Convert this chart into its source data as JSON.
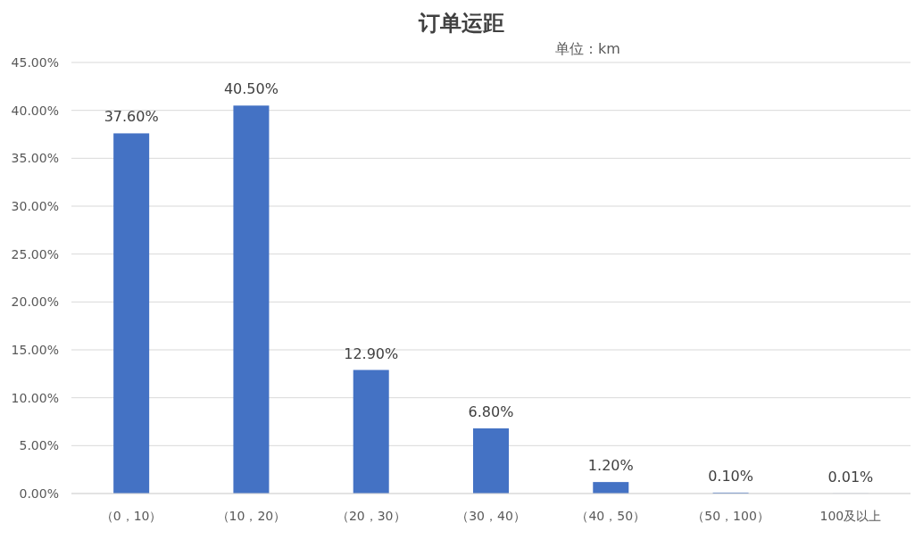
{
  "chart_data": {
    "type": "bar",
    "title": "订单运距",
    "subtitle": "单位：km",
    "categories": [
      "（0，10）",
      "（10，20）",
      "（20，30）",
      "（30，40）",
      "（40，50）",
      "（50，100）",
      "100及以上"
    ],
    "values": [
      37.6,
      40.5,
      12.9,
      6.8,
      1.2,
      0.1,
      0.01
    ],
    "value_labels": [
      "37.60%",
      "40.50%",
      "12.90%",
      "6.80%",
      "1.20%",
      "0.10%",
      "0.01%"
    ],
    "color": "#4472c4",
    "ylim": [
      0,
      45
    ],
    "yticks": [
      {
        "value": 0,
        "label": "0.00%"
      },
      {
        "value": 5,
        "label": "5.00%"
      },
      {
        "value": 10,
        "label": "10.00%"
      },
      {
        "value": 15,
        "label": "15.00%"
      },
      {
        "value": 20,
        "label": "20.00%"
      },
      {
        "value": 25,
        "label": "25.00%"
      },
      {
        "value": 30,
        "label": "30.00%"
      },
      {
        "value": 35,
        "label": "35.00%"
      },
      {
        "value": 40,
        "label": "40.00%"
      },
      {
        "value": 45,
        "label": "45.00%"
      }
    ],
    "grid": "y"
  }
}
